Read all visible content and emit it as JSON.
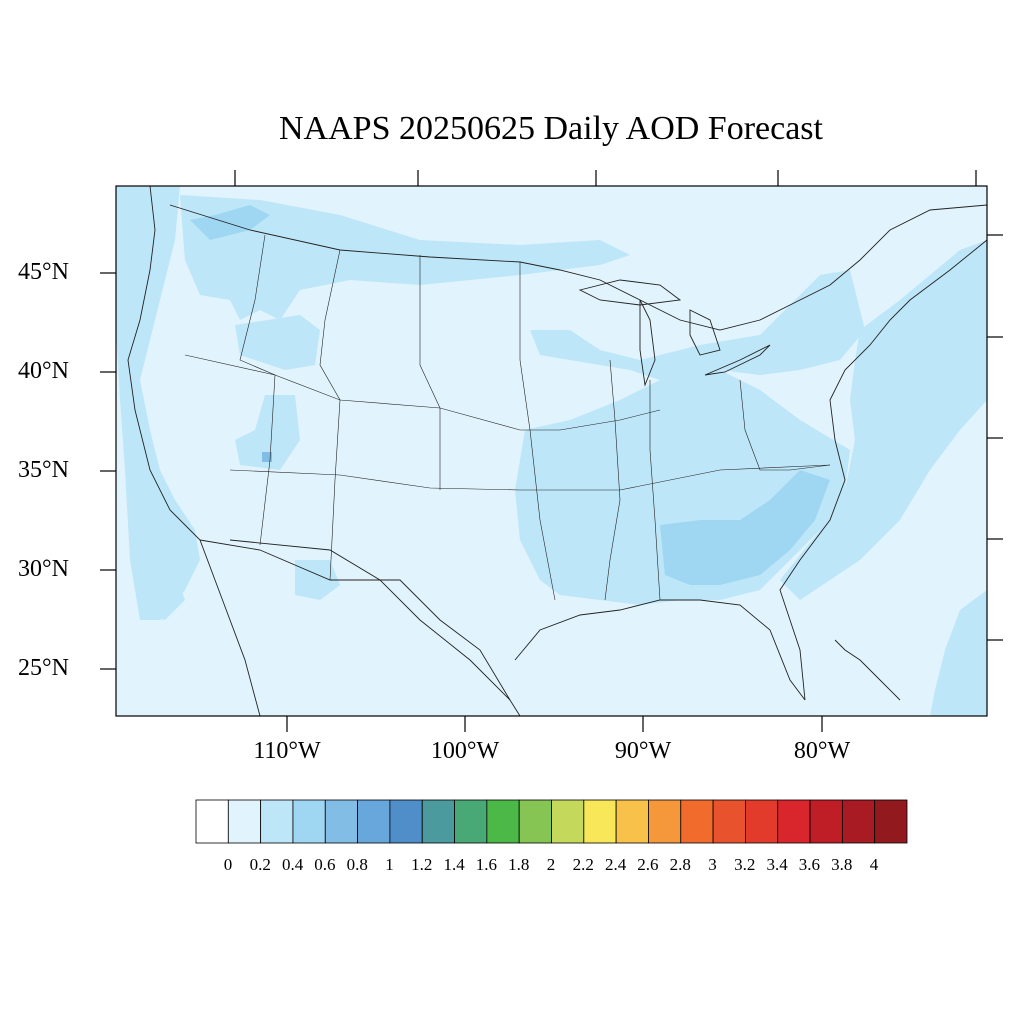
{
  "title": "NAAPS 20250625 Daily AOD Forecast",
  "lat_labels": [
    "45°N",
    "40°N",
    "35°N",
    "30°N",
    "25°N"
  ],
  "lon_labels": [
    "110°W",
    "100°W",
    "90°W",
    "80°W"
  ],
  "colorbar": {
    "labels": [
      "0",
      "0.2",
      "0.4",
      "0.6",
      "0.8",
      "1",
      "1.2",
      "1.4",
      "1.6",
      "1.8",
      "2",
      "2.2",
      "2.4",
      "2.6",
      "2.8",
      "3",
      "3.2",
      "3.4",
      "3.6",
      "3.8",
      "4"
    ],
    "colors": [
      "#ffffff",
      "#e1f3fc",
      "#bde6f8",
      "#9fd7f3",
      "#82bde6",
      "#68a7dc",
      "#4f8ec9",
      "#4a9a9e",
      "#48a876",
      "#4cb848",
      "#86c553",
      "#c4d95c",
      "#f8e758",
      "#f8c14a",
      "#f5983b",
      "#f16b2c",
      "#e8522c",
      "#e23a2b",
      "#d8262c",
      "#c01e26",
      "#a81b22",
      "#921a1e"
    ]
  },
  "chart_data": {
    "type": "heatmap",
    "variable": "AOD",
    "title": "NAAPS 20250625 Daily AOD Forecast",
    "x_ticks": [
      "110°W",
      "100°W",
      "90°W",
      "80°W"
    ],
    "y_ticks": [
      "45°N",
      "40°N",
      "35°N",
      "30°N",
      "25°N"
    ],
    "background_value_range": [
      0,
      0.2
    ],
    "elevated_regions_value_range": [
      0.2,
      0.4
    ],
    "peak_regions_value_range": [
      0.4,
      0.6
    ],
    "colorbar_range": [
      0,
      4
    ],
    "colorbar_step": 0.2
  }
}
